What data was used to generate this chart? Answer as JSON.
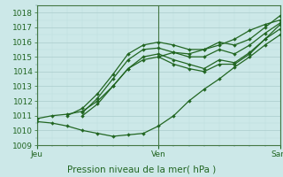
{
  "xlabel": "Pression niveau de la mer( hPa )",
  "bg_color": "#cce8e8",
  "grid_color_major": "#aacccc",
  "grid_color_minor": "#bbdddd",
  "line_color": "#226622",
  "marker_color": "#226622",
  "ylim": [
    1009,
    1018.5
  ],
  "yticks": [
    1009,
    1010,
    1011,
    1012,
    1013,
    1014,
    1015,
    1016,
    1017,
    1018
  ],
  "xlim": [
    0,
    48
  ],
  "xtick_positions": [
    0,
    24,
    48
  ],
  "xtick_labels": [
    "Jeu",
    "Ven",
    "Sam"
  ],
  "vline_positions": [
    0,
    24,
    48
  ],
  "lines": [
    {
      "x": [
        0,
        3,
        6,
        9,
        12,
        15,
        18,
        21,
        24,
        27,
        30,
        33,
        36,
        39,
        42,
        45,
        48
      ],
      "y": [
        1010.8,
        1011.0,
        1011.1,
        1011.3,
        1012.0,
        1013.0,
        1014.2,
        1014.8,
        1015.0,
        1015.3,
        1015.2,
        1015.5,
        1015.8,
        1016.2,
        1016.8,
        1017.2,
        1017.5
      ]
    },
    {
      "x": [
        0,
        3,
        6,
        9,
        12,
        15,
        18,
        21,
        24,
        27,
        30,
        33,
        36,
        39,
        42,
        45,
        48
      ],
      "y": [
        1010.6,
        1010.5,
        1010.3,
        1010.0,
        1009.8,
        1009.6,
        1009.7,
        1009.8,
        1010.3,
        1011.0,
        1012.0,
        1012.8,
        1013.5,
        1014.3,
        1015.0,
        1015.8,
        1016.5
      ]
    },
    {
      "x": [
        6,
        9,
        12,
        15,
        18,
        21,
        24,
        27,
        30,
        33,
        36,
        39,
        42,
        45,
        48
      ],
      "y": [
        1011.0,
        1011.5,
        1012.5,
        1013.8,
        1015.2,
        1015.8,
        1016.0,
        1015.8,
        1015.5,
        1015.5,
        1016.0,
        1015.8,
        1016.2,
        1017.0,
        1017.8
      ]
    },
    {
      "x": [
        9,
        12,
        15,
        18,
        21,
        24,
        27,
        30,
        33,
        36,
        39,
        42,
        45,
        48
      ],
      "y": [
        1011.2,
        1012.2,
        1013.5,
        1014.8,
        1015.5,
        1015.6,
        1015.3,
        1015.0,
        1015.0,
        1015.5,
        1015.2,
        1015.8,
        1016.6,
        1017.3
      ]
    },
    {
      "x": [
        9,
        12,
        15,
        18,
        21,
        24,
        27,
        30,
        33,
        36,
        39,
        42,
        45,
        48
      ],
      "y": [
        1011.0,
        1011.8,
        1013.0,
        1014.2,
        1015.0,
        1015.2,
        1014.8,
        1014.5,
        1014.2,
        1014.8,
        1014.6,
        1015.3,
        1016.2,
        1016.9
      ]
    },
    {
      "x": [
        24,
        27,
        30,
        33,
        36,
        39,
        42,
        45,
        48
      ],
      "y": [
        1015.0,
        1014.5,
        1014.2,
        1014.0,
        1014.5,
        1014.5,
        1015.2,
        1016.2,
        1017.2
      ]
    }
  ]
}
